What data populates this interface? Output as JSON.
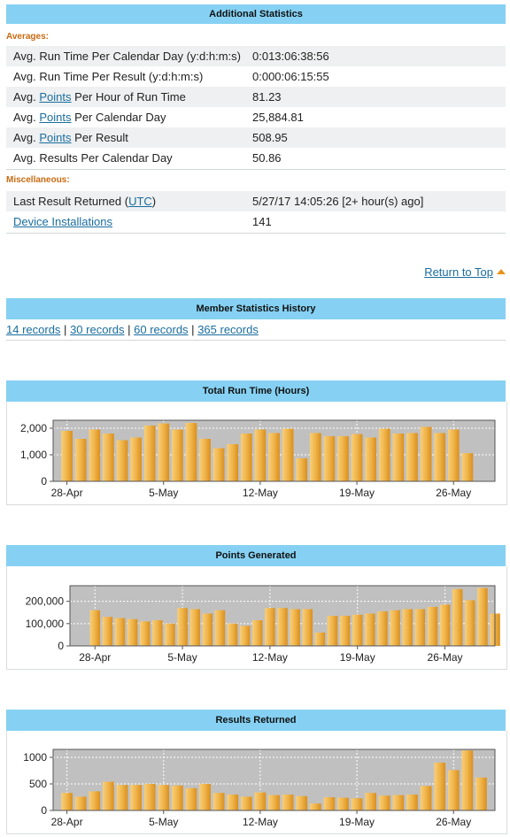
{
  "additional": {
    "title": "Additional Statistics",
    "averages_label": "Averages:",
    "rows": [
      {
        "pre": "Avg. Run Time Per Calendar Day (y:d:h:m:s)",
        "value": "0:013:06:38:56"
      },
      {
        "pre": "Avg. Run Time Per Result (y:d:h:m:s)",
        "value": "0:000:06:15:55"
      },
      {
        "pre": "Avg. ",
        "link": "Points",
        "post": " Per Hour of Run Time",
        "value": "81.23"
      },
      {
        "pre": "Avg. ",
        "link": "Points",
        "post": " Per Calendar Day",
        "value": "25,884.81"
      },
      {
        "pre": "Avg. ",
        "link": "Points",
        "post": " Per Result",
        "value": "508.95"
      },
      {
        "pre": "Avg. Results Per Calendar Day",
        "value": "50.86"
      }
    ],
    "misc_label": "Miscellaneous:",
    "last_result": {
      "pre": "Last Result Returned (",
      "link": "UTC",
      "post": ")",
      "value": "5/27/17 14:05:26 [2+ hour(s) ago]"
    },
    "device": {
      "link": "Device Installations",
      "value": "141"
    }
  },
  "return_to_top": "Return to Top",
  "history": {
    "title": "Member Statistics History",
    "records": [
      "14 records",
      "30 records",
      "60 records",
      "365 records"
    ],
    "separator": "|"
  },
  "colors": {
    "header": "#86d1f3",
    "section": "#c96a11",
    "link": "#1a6d9e",
    "plot_bg": "#c0c0c0",
    "bar": "#f0b449"
  },
  "chart_data": [
    {
      "type": "bar",
      "title": "Total Run Time (Hours)",
      "xlabel": "",
      "ylabel": "",
      "ylim": [
        0,
        2300
      ],
      "yticks": [
        0,
        1000,
        2000
      ],
      "ytick_labels": [
        "0",
        "1,000",
        "2,000"
      ],
      "xticks": [
        "28-Apr",
        "5-May",
        "12-May",
        "19-May",
        "26-May"
      ],
      "xtick_days": [
        0,
        7,
        14,
        21,
        28
      ],
      "start_day": -1,
      "end_day": 31,
      "first_bar_day": 0,
      "values": [
        1900,
        1600,
        1950,
        1800,
        1550,
        1650,
        2100,
        2180,
        1950,
        2200,
        1600,
        1250,
        1400,
        1800,
        1950,
        1820,
        1980,
        870,
        1820,
        1700,
        1700,
        1780,
        1650,
        1980,
        1800,
        1820,
        2050,
        1820,
        1950,
        1060
      ],
      "grid": true
    },
    {
      "type": "bar",
      "title": "Points Generated",
      "xlabel": "",
      "ylabel": "",
      "ylim": [
        0,
        270000
      ],
      "yticks": [
        0,
        100000,
        200000
      ],
      "ytick_labels": [
        "0",
        "100,000",
        "200,000"
      ],
      "xticks": [
        "28-Apr",
        "5-May",
        "12-May",
        "19-May",
        "26-May"
      ],
      "xtick_days": [
        0,
        7,
        14,
        21,
        28
      ],
      "start_day": -2,
      "end_day": 32,
      "first_bar_day": 0,
      "values": [
        160000,
        130000,
        125000,
        120000,
        110000,
        115000,
        100000,
        170000,
        165000,
        145000,
        160000,
        100000,
        90000,
        115000,
        170000,
        170000,
        165000,
        165000,
        60000,
        135000,
        135000,
        140000,
        145000,
        155000,
        160000,
        165000,
        165000,
        175000,
        185000,
        255000,
        205000,
        260000,
        145000
      ],
      "grid": true
    },
    {
      "type": "bar",
      "title": "Results Returned",
      "xlabel": "",
      "ylabel": "",
      "ylim": [
        0,
        1150
      ],
      "yticks": [
        0,
        500,
        1000
      ],
      "ytick_labels": [
        "0",
        "500",
        "1000"
      ],
      "xticks": [
        "28-Apr",
        "5-May",
        "12-May",
        "19-May",
        "26-May"
      ],
      "xtick_days": [
        0,
        7,
        14,
        21,
        28
      ],
      "start_day": -1,
      "end_day": 31,
      "first_bar_day": 0,
      "values": [
        330,
        260,
        360,
        540,
        480,
        480,
        500,
        480,
        470,
        420,
        500,
        330,
        300,
        260,
        340,
        290,
        300,
        270,
        130,
        250,
        240,
        230,
        330,
        280,
        290,
        300,
        460,
        900,
        760,
        1130,
        620
      ],
      "grid": true
    }
  ]
}
